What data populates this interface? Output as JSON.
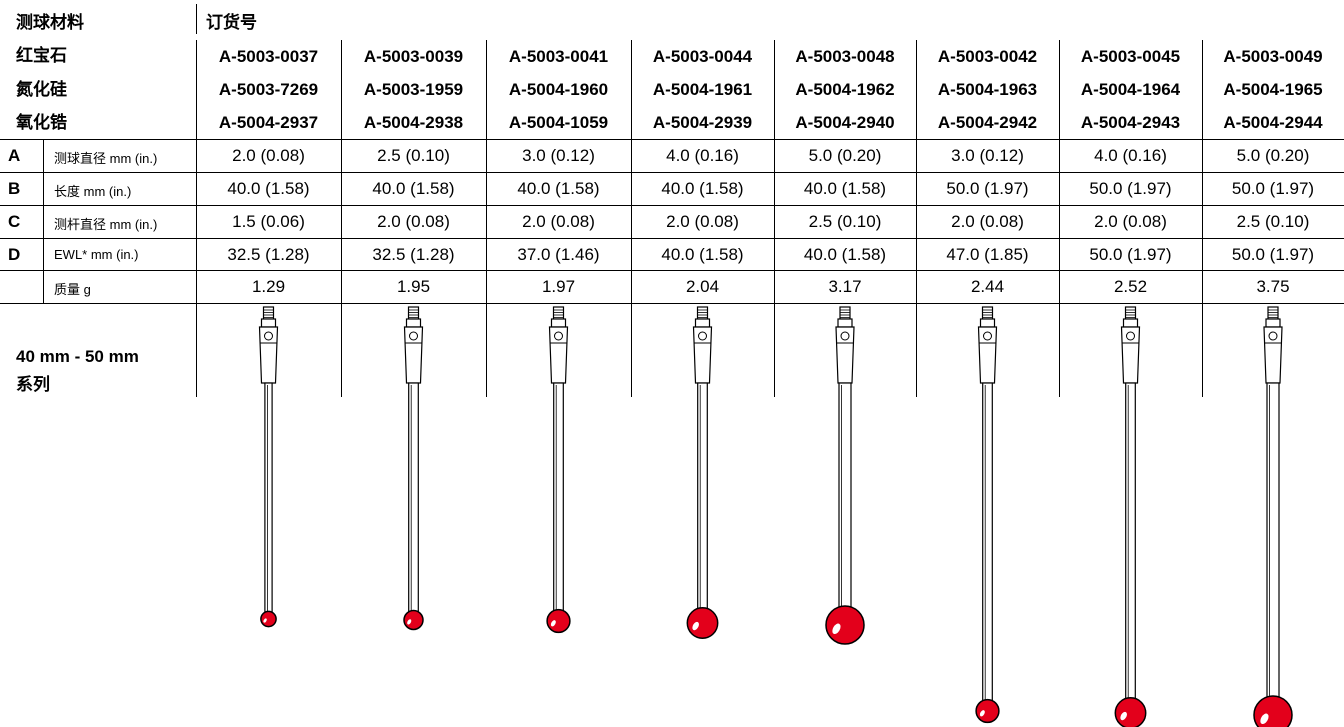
{
  "header": {
    "material_heading": "测球材料",
    "order_heading": "订货号"
  },
  "materials": [
    "红宝石",
    "氮化硅",
    "氧化锆"
  ],
  "part_numbers": [
    [
      "A-5003-0037",
      "A-5003-0039",
      "A-5003-0041",
      "A-5003-0044",
      "A-5003-0048",
      "A-5003-0042",
      "A-5003-0045",
      "A-5003-0049"
    ],
    [
      "A-5003-7269",
      "A-5003-1959",
      "A-5004-1960",
      "A-5004-1961",
      "A-5004-1962",
      "A-5004-1963",
      "A-5004-1964",
      "A-5004-1965"
    ],
    [
      "A-5004-2937",
      "A-5004-2938",
      "A-5004-1059",
      "A-5004-2939",
      "A-5004-2940",
      "A-5004-2942",
      "A-5004-2943",
      "A-5004-2944"
    ]
  ],
  "params": [
    {
      "letter": "A",
      "label": "测球直径 mm (in.)",
      "values": [
        "2.0 (0.08)",
        "2.5 (0.10)",
        "3.0 (0.12)",
        "4.0 (0.16)",
        "5.0 (0.20)",
        "3.0 (0.12)",
        "4.0 (0.16)",
        "5.0 (0.20)"
      ]
    },
    {
      "letter": "B",
      "label": "长度 mm (in.)",
      "values": [
        "40.0 (1.58)",
        "40.0 (1.58)",
        "40.0 (1.58)",
        "40.0 (1.58)",
        "40.0 (1.58)",
        "50.0 (1.97)",
        "50.0 (1.97)",
        "50.0 (1.97)"
      ]
    },
    {
      "letter": "C",
      "label": "测杆直径 mm (in.)",
      "values": [
        "1.5 (0.06)",
        "2.0 (0.08)",
        "2.0 (0.08)",
        "2.0 (0.08)",
        "2.5 (0.10)",
        "2.0 (0.08)",
        "2.0 (0.08)",
        "2.5 (0.10)"
      ]
    },
    {
      "letter": "D",
      "label": "EWL* mm (in.)",
      "values": [
        "32.5 (1.28)",
        "32.5 (1.28)",
        "37.0 (1.46)",
        "40.0 (1.58)",
        "40.0 (1.58)",
        "47.0 (1.85)",
        "50.0 (1.97)",
        "50.0 (1.97)"
      ]
    },
    {
      "letter": "",
      "label": "质量 g",
      "values": [
        "1.29",
        "1.95",
        "1.97",
        "2.04",
        "3.17",
        "2.44",
        "2.52",
        "3.75"
      ]
    }
  ],
  "series_label": {
    "line1": "40 mm - 50 mm",
    "line2": "系列"
  },
  "colors": {
    "ball": "#e3001b",
    "ball_dark": "#b00014",
    "line": "#000000"
  },
  "stylus_ball_mm": [
    2.0,
    2.5,
    3.0,
    4.0,
    5.0,
    3.0,
    4.0,
    5.0
  ],
  "stylus_length_mm": [
    40.0,
    40.0,
    40.0,
    40.0,
    40.0,
    50.0,
    50.0,
    50.0
  ],
  "stem_mm": [
    1.5,
    2.0,
    2.0,
    2.0,
    2.5,
    2.0,
    2.0,
    2.5
  ]
}
